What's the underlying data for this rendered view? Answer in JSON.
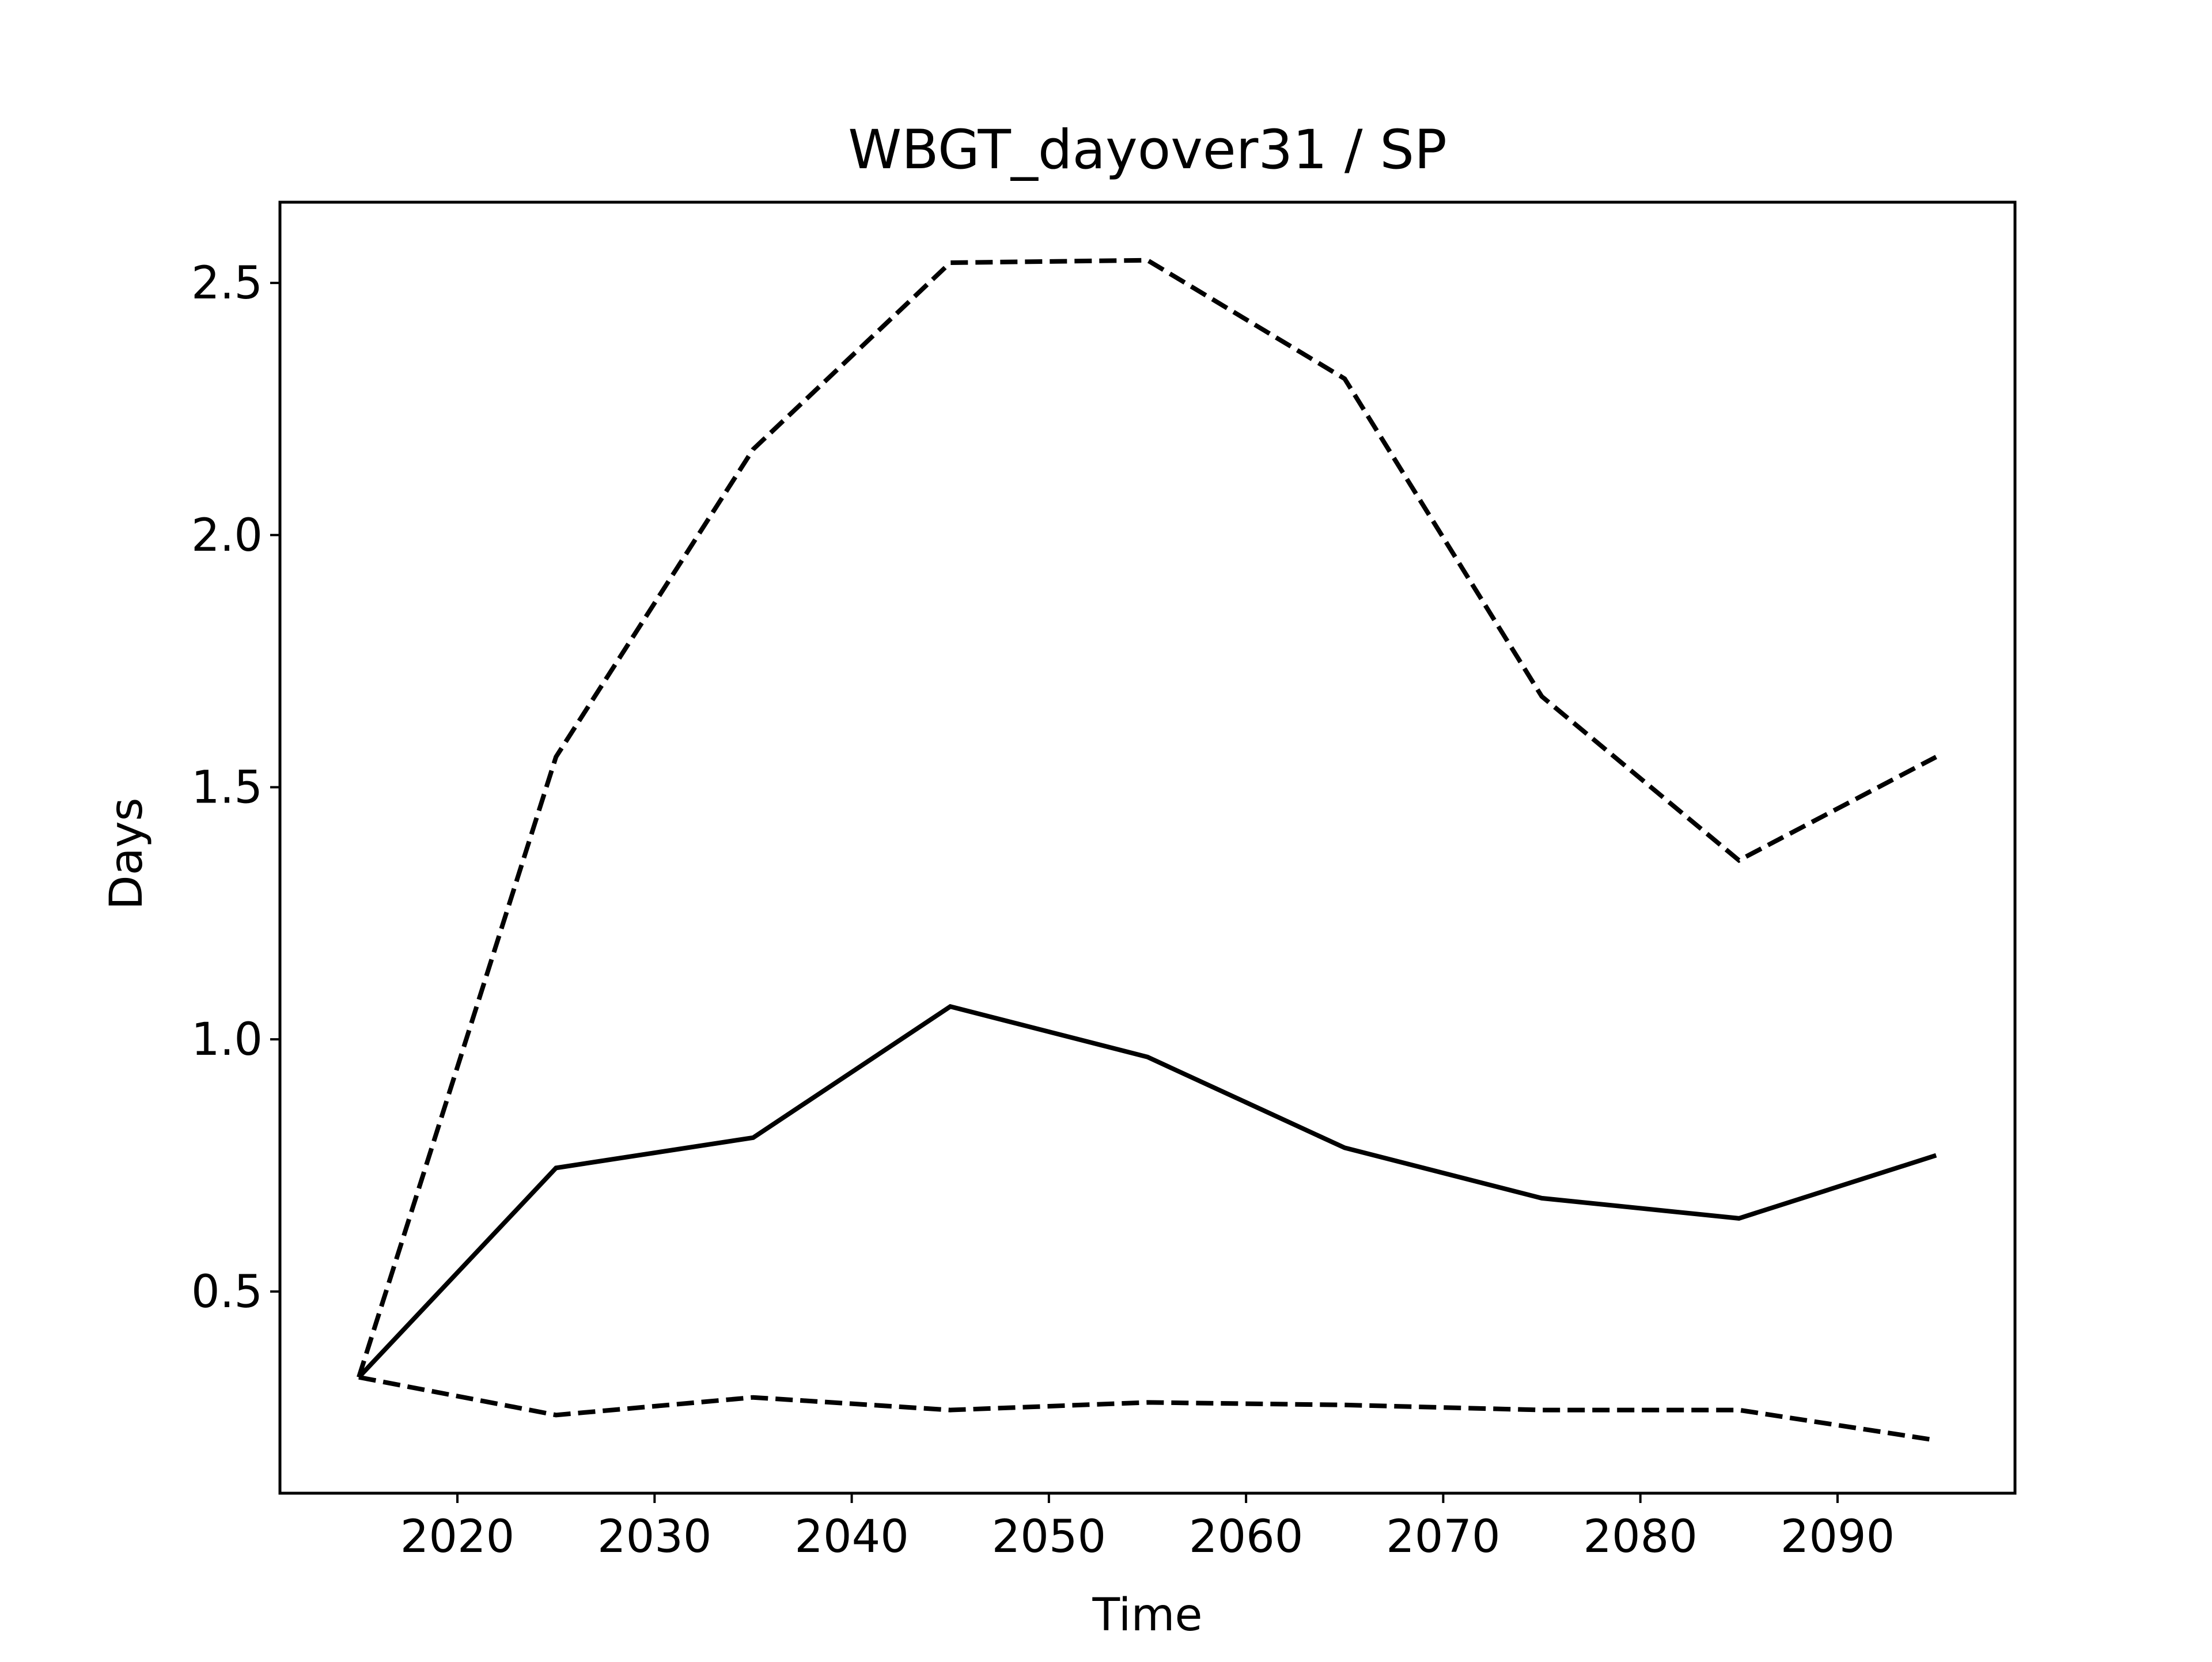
{
  "chart_data": {
    "type": "line",
    "title": "WBGT_dayover31 / SP",
    "xlabel": "Time",
    "ylabel": "Days",
    "xlim": [
      2011,
      2099
    ],
    "ylim": [
      0.1,
      2.66
    ],
    "xticks": [
      "2020",
      "2030",
      "2040",
      "2050",
      "2060",
      "2070",
      "2080",
      "2090"
    ],
    "yticks": [
      "0.5",
      "1.0",
      "1.5",
      "2.0",
      "2.5"
    ],
    "grid": false,
    "legend": "none",
    "x": [
      2015,
      2025,
      2035,
      2045,
      2055,
      2065,
      2075,
      2085,
      2095
    ],
    "series": [
      {
        "style": "dashed",
        "values": [
          0.33,
          1.56,
          2.17,
          2.54,
          2.545,
          2.31,
          1.68,
          1.355,
          1.56
        ]
      },
      {
        "style": "solid",
        "values": [
          0.33,
          0.745,
          0.805,
          1.065,
          0.965,
          0.785,
          0.685,
          0.645,
          0.77
        ]
      },
      {
        "style": "dashed",
        "values": [
          0.33,
          0.255,
          0.29,
          0.265,
          0.28,
          0.275,
          0.265,
          0.265,
          0.205
        ]
      }
    ],
    "colors": {
      "line": "#000000",
      "axes": "#000000",
      "background": "#ffffff"
    }
  }
}
